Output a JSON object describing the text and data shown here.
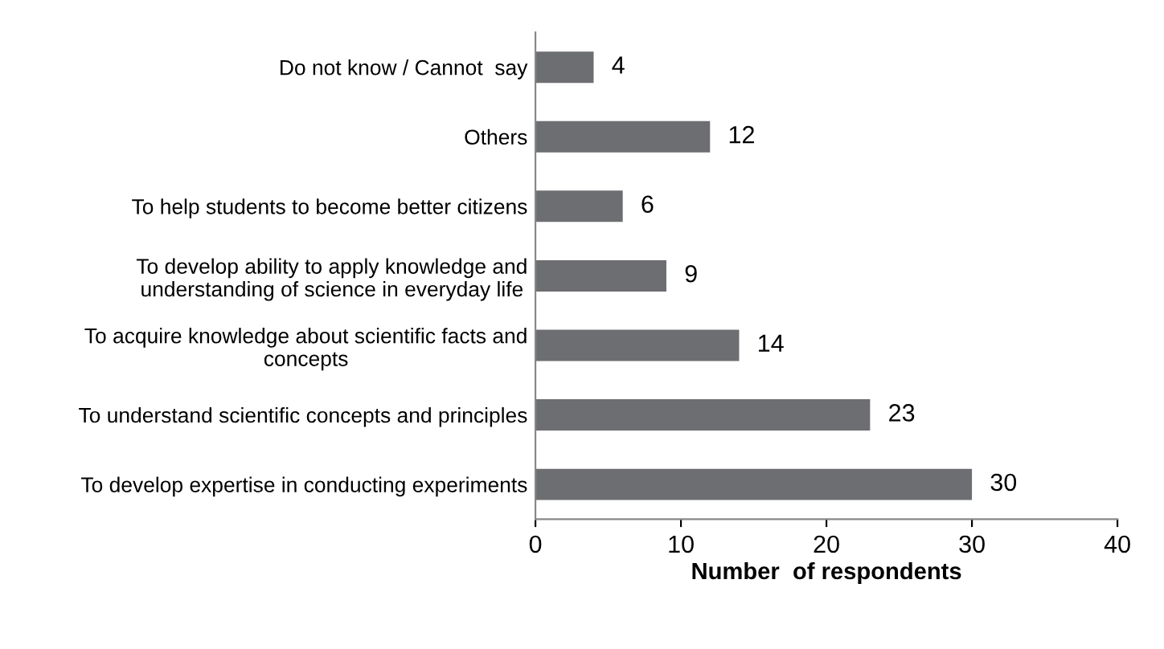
{
  "chart_data": {
    "type": "bar",
    "orientation": "horizontal",
    "xlabel": "Number  of respondents",
    "categories": [
      "Do not know / Cannot  say",
      "Others",
      "To help students to become better citizens",
      "To develop ability to apply knowledge and\nunderstanding of science in everyday life",
      "To acquire knowledge about scientific facts and\nconcepts",
      "To understand scientific concepts and principles",
      "To develop expertise in conducting experiments"
    ],
    "values": [
      4,
      12,
      6,
      9,
      14,
      23,
      30
    ],
    "color": "#6d6e71",
    "xlim": [
      0,
      40
    ],
    "xticks": [
      0,
      10,
      20,
      30,
      40
    ],
    "grid": false,
    "data_labels": true
  }
}
